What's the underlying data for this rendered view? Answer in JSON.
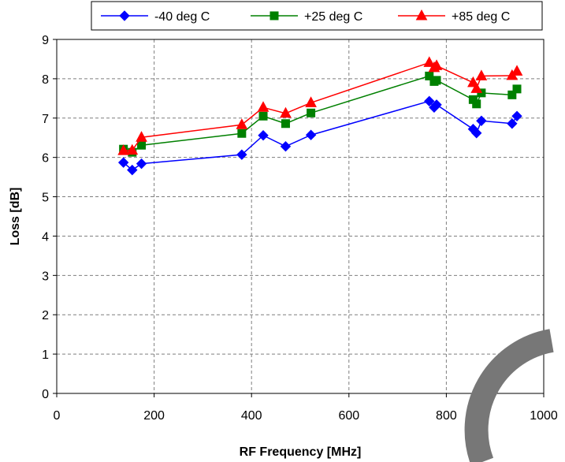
{
  "chart_data": {
    "type": "line",
    "title": "",
    "xlabel": "RF Frequency [MHz]",
    "ylabel": "Loss [dB]",
    "xlim": [
      0,
      1000
    ],
    "ylim": [
      0,
      9
    ],
    "xticks": [
      0,
      200,
      400,
      600,
      800,
      1000
    ],
    "yticks": [
      0,
      1,
      2,
      3,
      4,
      5,
      6,
      7,
      8,
      9
    ],
    "grid": true,
    "legend_position": "top",
    "series": [
      {
        "name": "-40 deg C",
        "color": "#0000ff",
        "marker": "diamond",
        "x": [
          137,
          155,
          174,
          380,
          424,
          470,
          522,
          765,
          775,
          780,
          855,
          862,
          872,
          935,
          945
        ],
        "y": [
          5.87,
          5.68,
          5.84,
          6.07,
          6.56,
          6.28,
          6.57,
          7.43,
          7.27,
          7.34,
          6.72,
          6.62,
          6.93,
          6.86,
          7.05
        ]
      },
      {
        "name": "+25 deg C",
        "color": "#008000",
        "marker": "square",
        "x": [
          137,
          155,
          174,
          380,
          424,
          470,
          522,
          765,
          775,
          780,
          855,
          862,
          872,
          935,
          945
        ],
        "y": [
          6.21,
          6.13,
          6.31,
          6.61,
          7.05,
          6.86,
          7.13,
          8.07,
          7.93,
          7.96,
          7.47,
          7.36,
          7.64,
          7.59,
          7.74
        ]
      },
      {
        "name": "+85 deg C",
        "color": "#ff0000",
        "marker": "triangle",
        "x": [
          137,
          155,
          174,
          380,
          424,
          470,
          522,
          765,
          775,
          780,
          855,
          862,
          872,
          935,
          945
        ],
        "y": [
          6.17,
          6.18,
          6.51,
          6.83,
          7.27,
          7.12,
          7.39,
          8.41,
          8.28,
          8.33,
          7.9,
          7.75,
          8.07,
          8.08,
          8.19
        ]
      }
    ]
  },
  "watermark": {
    "shape": "arc",
    "color": "#777777"
  }
}
